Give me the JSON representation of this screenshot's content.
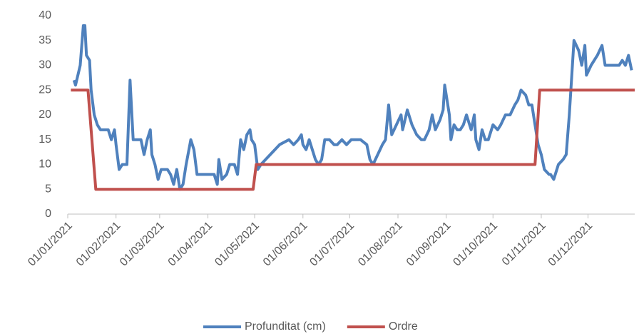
{
  "chart_data": {
    "type": "line",
    "xlim": [
      "01/01/2021",
      "31/12/2021"
    ],
    "xticks": [
      "01/01/2021",
      "01/02/2021",
      "01/03/2021",
      "01/04/2021",
      "01/05/2021",
      "01/06/2021",
      "01/07/2021",
      "01/08/2021",
      "01/09/2021",
      "01/10/2021",
      "01/11/2021",
      "01/12/2021"
    ],
    "ylim": [
      0,
      40
    ],
    "yticks": [
      0,
      5,
      10,
      15,
      20,
      25,
      30,
      35,
      40
    ],
    "grid": false,
    "legend": "bottom",
    "series": [
      {
        "name": "Profunditat (cm)",
        "color": "#4f81bd",
        "x": [
          "05/01/2021",
          "06/01/2021",
          "09/01/2021",
          "11/01/2021",
          "12/01/2021",
          "13/01/2021",
          "15/01/2021",
          "16/01/2021",
          "18/01/2021",
          "20/01/2021",
          "22/01/2021",
          "27/01/2021",
          "29/01/2021",
          "31/01/2021",
          "01/02/2021",
          "03/02/2021",
          "05/02/2021",
          "08/02/2021",
          "10/02/2021",
          "12/02/2021",
          "17/02/2021",
          "19/02/2021",
          "21/02/2021",
          "23/02/2021",
          "24/02/2021",
          "26/02/2021",
          "28/02/2021",
          "02/03/2021",
          "06/03/2021",
          "08/03/2021",
          "10/03/2021",
          "12/03/2021",
          "14/03/2021",
          "16/03/2021",
          "18/03/2021",
          "21/03/2021",
          "23/03/2021",
          "25/03/2021",
          "05/04/2021",
          "07/04/2021",
          "08/04/2021",
          "10/04/2021",
          "13/04/2021",
          "15/04/2021",
          "18/04/2021",
          "20/04/2021",
          "22/04/2021",
          "24/04/2021",
          "26/04/2021",
          "28/04/2021",
          "29/04/2021",
          "01/05/2021",
          "03/05/2021",
          "05/05/2021",
          "11/05/2021",
          "17/05/2021",
          "23/05/2021",
          "26/05/2021",
          "29/05/2021",
          "31/05/2021",
          "01/06/2021",
          "03/06/2021",
          "05/06/2021",
          "07/06/2021",
          "09/06/2021",
          "11/06/2021",
          "13/06/2021",
          "15/06/2021",
          "18/06/2021",
          "21/06/2021",
          "23/06/2021",
          "26/06/2021",
          "29/06/2021",
          "02/07/2021",
          "08/07/2021",
          "12/07/2021",
          "14/07/2021",
          "16/07/2021",
          "19/07/2021",
          "22/07/2021",
          "24/07/2021",
          "26/07/2021",
          "28/07/2021",
          "31/07/2021",
          "03/08/2021",
          "04/08/2021",
          "07/08/2021",
          "10/08/2021",
          "13/08/2021",
          "16/08/2021",
          "18/08/2021",
          "21/08/2021",
          "23/08/2021",
          "25/08/2021",
          "28/08/2021",
          "30/08/2021",
          "31/08/2021",
          "03/09/2021",
          "04/09/2021",
          "06/09/2021",
          "08/09/2021",
          "10/09/2021",
          "12/09/2021",
          "14/09/2021",
          "15/09/2021",
          "17/09/2021",
          "19/09/2021",
          "20/09/2021",
          "22/09/2021",
          "24/09/2021",
          "26/09/2021",
          "28/09/2021",
          "01/10/2021",
          "04/10/2021",
          "06/10/2021",
          "09/10/2021",
          "12/10/2021",
          "15/10/2021",
          "17/10/2021",
          "19/10/2021",
          "22/10/2021",
          "24/10/2021",
          "26/10/2021",
          "28/10/2021",
          "30/10/2021",
          "01/11/2021",
          "03/11/2021",
          "06/11/2021",
          "07/11/2021",
          "09/11/2021",
          "12/11/2021",
          "15/11/2021",
          "17/11/2021",
          "19/11/2021",
          "21/11/2021",
          "22/11/2021",
          "25/11/2021",
          "27/11/2021",
          "29/11/2021",
          "30/11/2021",
          "03/12/2021",
          "07/12/2021",
          "10/12/2021",
          "12/12/2021",
          "21/12/2021",
          "23/12/2021",
          "25/12/2021",
          "27/12/2021",
          "29/12/2021"
        ],
        "values": [
          27,
          26,
          30,
          38,
          38,
          32,
          31,
          25,
          20,
          18,
          17,
          17,
          15,
          17,
          14,
          9,
          10,
          10,
          27,
          15,
          15,
          12,
          15,
          17,
          12,
          10,
          7,
          9,
          9,
          8,
          6,
          9,
          5,
          6,
          10,
          15,
          13,
          8,
          8,
          6,
          11,
          7,
          8,
          10,
          10,
          8,
          15,
          13,
          16,
          17,
          15,
          14,
          9,
          10,
          12,
          14,
          15,
          14,
          15,
          16,
          14,
          13,
          15,
          13,
          11,
          10,
          11,
          15,
          15,
          14,
          14,
          15,
          14,
          15,
          15,
          14,
          11,
          10,
          12,
          14,
          15,
          22,
          16,
          18,
          20,
          17,
          21,
          18,
          16,
          15,
          15,
          17,
          20,
          17,
          19,
          21,
          26,
          20,
          15,
          18,
          17,
          17,
          18,
          20,
          19,
          17,
          20,
          15,
          13,
          17,
          15,
          15,
          18,
          17,
          18,
          20,
          20,
          22,
          23,
          25,
          24,
          22,
          22,
          18,
          14,
          12,
          9,
          8,
          8,
          7,
          10,
          11,
          12,
          20,
          30,
          35,
          33,
          30,
          34,
          28,
          30,
          32,
          34,
          30,
          30,
          31,
          30,
          32,
          29
        ]
      },
      {
        "name": "Ordre",
        "color": "#c0504d",
        "x": [
          "03/01/2021",
          "14/01/2021",
          "19/01/2021",
          "30/04/2021",
          "02/05/2021",
          "28/10/2021",
          "31/10/2021",
          "31/12/2021"
        ],
        "values": [
          25,
          25,
          5,
          5,
          10,
          10,
          25,
          25
        ]
      }
    ]
  }
}
